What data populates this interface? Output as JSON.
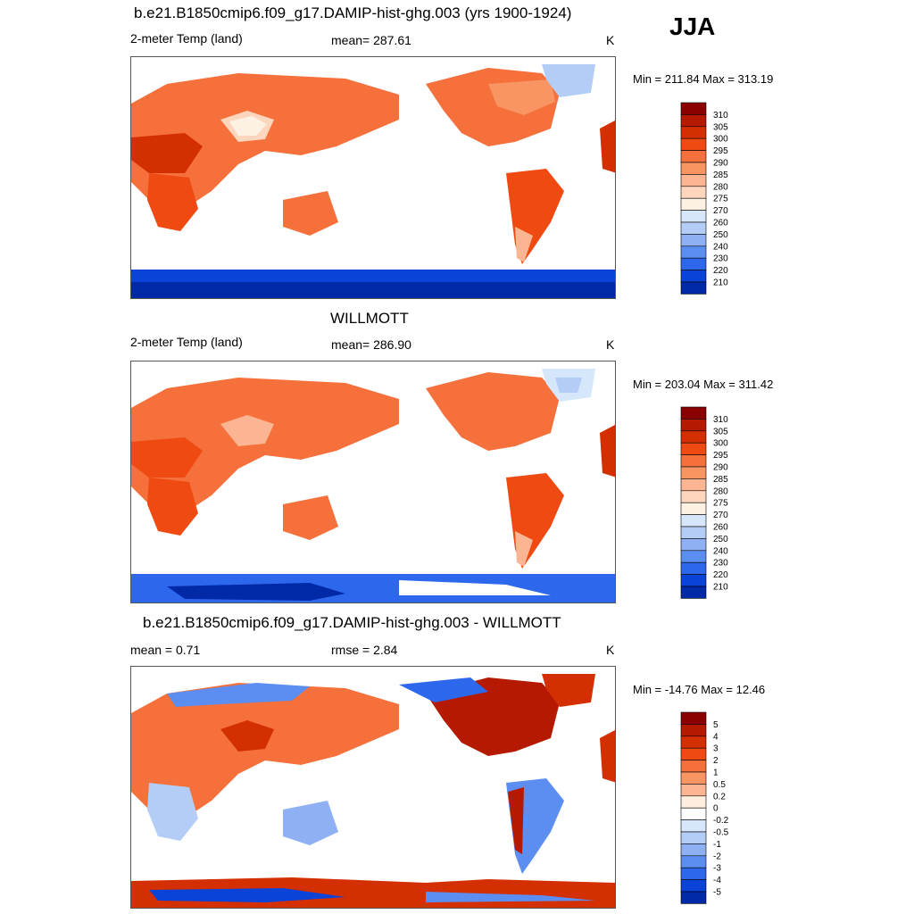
{
  "season": "JJA",
  "panels": [
    {
      "title": "b.e21.B1850cmip6.f09_g17.DAMIP-hist-ghg.003 (yrs 1900-1924)",
      "left_label": "2-meter Temp (land)",
      "center_label": "mean= 287.61",
      "units": "K",
      "minmax": "Min = 211.84 Max = 313.19"
    },
    {
      "title": "WILLMOTT",
      "left_label": "2-meter Temp (land)",
      "center_label": "mean= 286.90",
      "units": "K",
      "minmax": "Min = 203.04 Max = 311.42"
    },
    {
      "title": "b.e21.B1850cmip6.f09_g17.DAMIP-hist-ghg.003 - WILLMOTT",
      "left_label": "mean =   0.71",
      "center_label": "rmse =   2.84",
      "units": "K",
      "minmax": "Min = -14.76 Max =  12.46"
    }
  ],
  "colorbars": {
    "temperature": {
      "labels": [
        "310",
        "305",
        "300",
        "295",
        "290",
        "285",
        "280",
        "275",
        "270",
        "260",
        "250",
        "240",
        "230",
        "220",
        "210"
      ],
      "colors": [
        "#8b0000",
        "#b51a00",
        "#d42f00",
        "#ef4a12",
        "#f5703a",
        "#f89563",
        "#fbb592",
        "#fdd6bd",
        "#fdf1e4",
        "#d6e6fb",
        "#b4cdf6",
        "#8fb0f2",
        "#5b8ef0",
        "#2d68ec",
        "#0a43d8",
        "#0029a8"
      ]
    },
    "difference": {
      "labels": [
        "5",
        "4",
        "3",
        "2",
        "1",
        "0.5",
        "0.2",
        "0",
        "-0.2",
        "-0.5",
        "-1",
        "-2",
        "-3",
        "-4",
        "-5"
      ],
      "colors": [
        "#8b0000",
        "#b51a00",
        "#d42f00",
        "#ef4a12",
        "#f5703a",
        "#f89563",
        "#fbb592",
        "#fdeee0",
        "#fdfdfd",
        "#d6e6fb",
        "#b4cdf6",
        "#8fb0f2",
        "#5b8ef0",
        "#2d68ec",
        "#0a43d8",
        "#0029a8"
      ]
    }
  }
}
